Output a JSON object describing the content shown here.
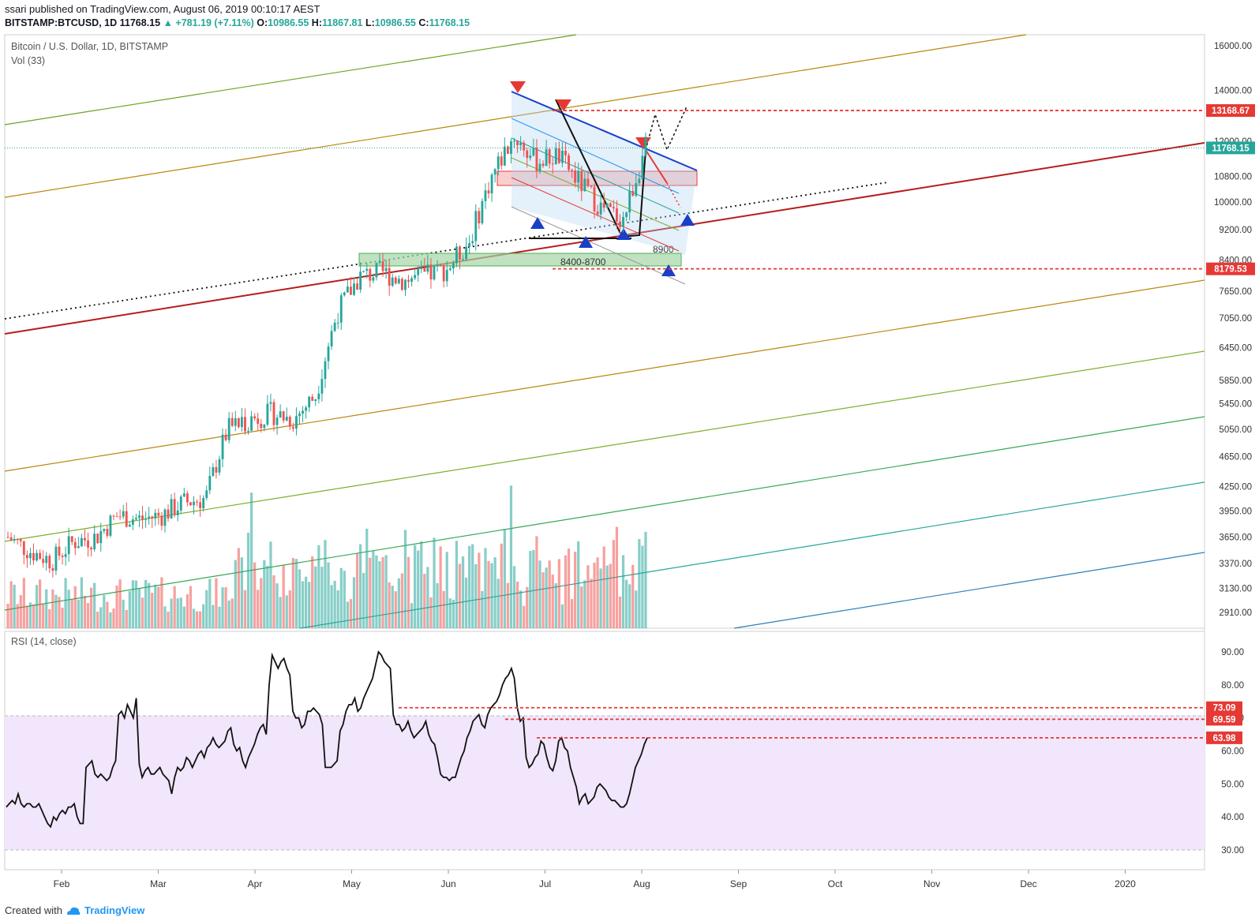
{
  "header": {
    "publish_line": "ssari published on TradingView.com, August 06, 2019 00:10:17 AEST",
    "symbol": "BITSTAMP:BTCUSD, 1D",
    "last": "11768.15",
    "change": "▲ +781.19 (+7.11%)",
    "o_label": "O:",
    "o_val": "10986.55",
    "h_label": "H:",
    "h_val": "11867.81",
    "l_label": "L:",
    "l_val": "10986.55",
    "c_label": "C:",
    "c_val": "11768.15"
  },
  "main_pane": {
    "title": "Bitcoin / U.S. Dollar, 1D, BITSTAMP",
    "vol_label": "Vol (33)"
  },
  "rsi_pane": {
    "title": "RSI (14, close)"
  },
  "footer": {
    "created": "Created with",
    "brand": "TradingView"
  },
  "colors": {
    "up": "#26a69a",
    "down": "#ef5350",
    "rsi_band": "#f1e6fb",
    "level": "#e53935",
    "accent": "#2196f3"
  },
  "chart_data": {
    "type": "candlestick",
    "title": "Bitcoin / U.S. Dollar, 1D, BITSTAMP",
    "price_ticks": [
      16000,
      14000,
      13168.67,
      12000,
      11768.15,
      10800,
      10000,
      9200,
      8400,
      8179.53,
      7650,
      7050,
      6450,
      5850,
      5450,
      5050,
      4650,
      4250,
      3950,
      3650,
      3370,
      3130,
      2910
    ],
    "price_tick_labels": [
      "16000.00",
      "14000.00",
      "13168.67",
      "12000.00",
      "11768.15",
      "10800.00",
      "10000.00",
      "9200.00",
      "8400.00",
      "8179.53",
      "7650.00",
      "7050.00",
      "6450.00",
      "5850.00",
      "5450.00",
      "5050.00",
      "4650.00",
      "4250.00",
      "3950.00",
      "3650.00",
      "3370.00",
      "3130.00",
      "2910.00"
    ],
    "highlight_levels": [
      {
        "value": 13168.67,
        "label": "13168.67",
        "color": "#e53935"
      },
      {
        "value": 11768.15,
        "label": "11768.15",
        "color": "#26a69a"
      },
      {
        "value": 8179.53,
        "label": "8179.53",
        "color": "#e53935"
      }
    ],
    "x_months": [
      "Feb",
      "Mar",
      "Apr",
      "May",
      "Jun",
      "Jul",
      "Aug",
      "Sep",
      "Oct",
      "Nov",
      "Dec",
      "2020"
    ],
    "annotations": [
      "8900",
      "8400-8700"
    ],
    "price_ohlc_weekly_close": [
      3650,
      3500,
      3400,
      3600,
      3650,
      3900,
      3850,
      3900,
      4050,
      4100,
      5050,
      5200,
      5300,
      5200,
      5600,
      7200,
      8000,
      8100,
      7900,
      8000,
      8200,
      8900,
      10800,
      12200,
      11300,
      11500,
      10600,
      9800,
      9500,
      11768
    ],
    "rsi": {
      "name": "RSI (14, close)",
      "ticks": [
        90,
        80,
        70,
        60,
        50,
        40,
        30
      ],
      "tick_labels": [
        "90.00",
        "80.00",
        "70.00",
        "60.00",
        "50.00",
        "40.00",
        "30.00"
      ],
      "band": [
        30,
        70
      ],
      "levels": [
        {
          "value": 73.09,
          "label": "73.09"
        },
        {
          "value": 69.59,
          "label": "69.59"
        },
        {
          "value": 63.98,
          "label": "63.98"
        }
      ],
      "values": [
        43,
        44,
        45,
        44,
        47,
        44,
        43,
        44,
        44,
        43,
        43,
        44,
        42,
        40,
        38,
        37,
        40,
        39,
        41,
        42,
        41,
        43,
        43,
        44,
        40,
        38,
        38,
        55,
        56,
        57,
        53,
        52,
        53,
        52,
        51,
        52,
        55,
        57,
        71,
        72,
        70,
        74,
        72,
        70,
        76,
        56,
        52,
        54,
        55,
        53,
        53,
        54,
        55,
        53,
        52,
        51,
        47,
        52,
        55,
        54,
        55,
        58,
        57,
        55,
        57,
        59,
        60,
        58,
        61,
        62,
        64,
        62,
        61,
        62,
        63,
        66,
        67,
        62,
        60,
        61,
        57,
        55,
        58,
        60,
        62,
        65,
        67,
        68,
        65,
        80,
        89,
        87,
        85,
        87,
        88,
        85,
        83,
        72,
        70,
        70,
        67,
        68,
        72,
        72,
        73,
        72,
        71,
        68,
        55,
        55,
        55,
        56,
        57,
        66,
        68,
        72,
        74,
        74,
        76,
        72,
        73,
        76,
        78,
        80,
        82,
        86,
        90,
        89,
        87,
        86,
        85,
        71,
        68,
        68,
        66,
        67,
        69,
        66,
        64,
        65,
        66,
        67,
        69,
        65,
        63,
        62,
        58,
        53,
        52,
        52,
        51,
        52,
        52,
        55,
        58,
        60,
        64,
        66,
        69,
        70,
        71,
        68,
        67,
        71,
        73,
        74,
        75,
        77,
        80,
        82,
        83,
        85,
        82,
        73,
        69,
        70,
        58,
        55,
        56,
        58,
        59,
        63,
        62,
        58,
        55,
        54,
        57,
        63,
        64,
        61,
        60,
        55,
        52,
        49,
        44,
        46,
        47,
        44,
        45,
        46,
        49,
        50,
        49,
        48,
        46,
        45,
        45,
        44,
        43,
        43,
        44,
        47,
        51,
        55,
        57,
        59,
        62,
        64
      ]
    },
    "volume_note": "Vol (33)"
  }
}
